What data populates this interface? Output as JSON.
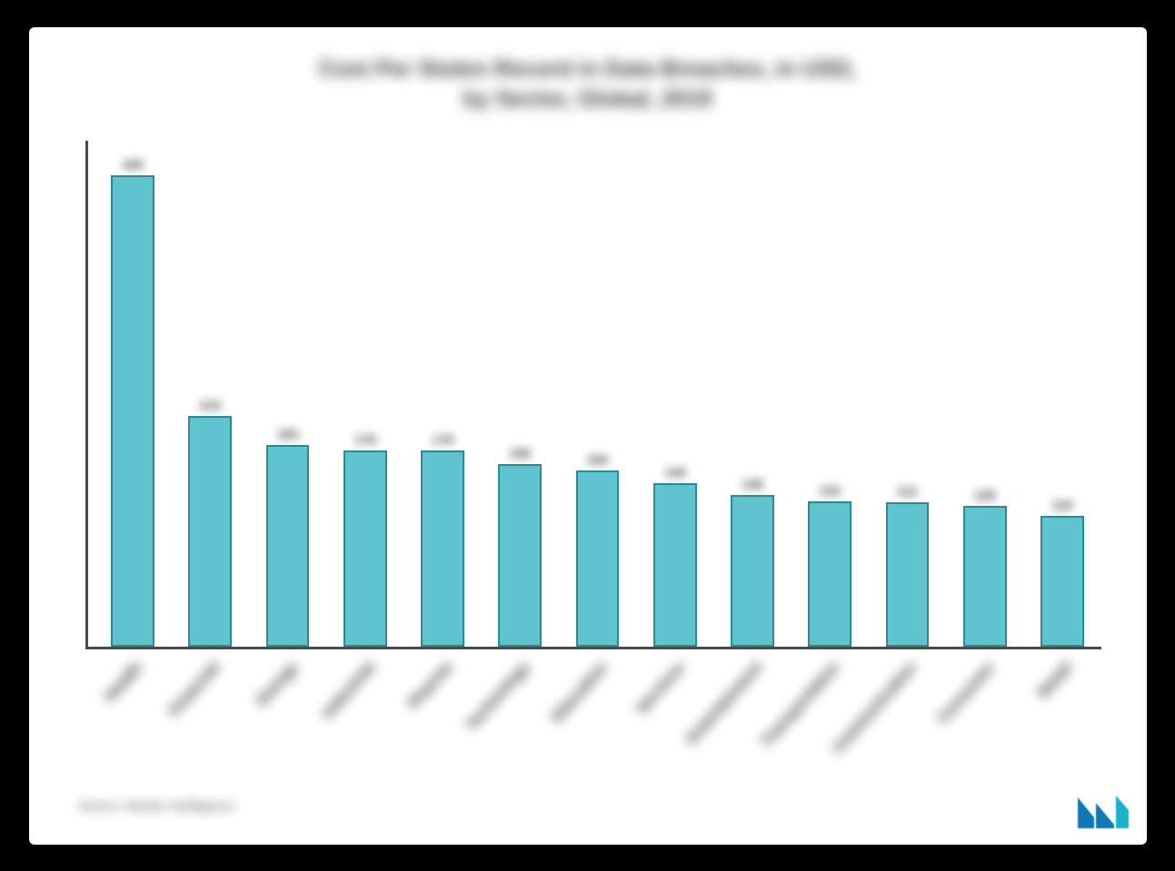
{
  "chart": {
    "type": "bar",
    "title_line1": "Cost Per Stolen Record in Data Breaches, in USD,",
    "title_line2": "by Sector, Global, 2019",
    "title_fontsize": 25,
    "title_color": "#3a3a3a",
    "background_color": "#ffffff",
    "frame_background": "#000000",
    "axis_color": "#4a4a4a",
    "bar_fill": "#5fc4ce",
    "bar_border": "#2b8a99",
    "bar_width_ratio": 0.56,
    "value_fontsize": 14,
    "label_fontsize": 17,
    "label_rotation_deg": -48,
    "ylim": [
      0,
      460
    ],
    "categories": [
      "Health",
      "Financial",
      "Energy",
      "Industrial",
      "Pharma",
      "Technology",
      "Education",
      "Services",
      "Entertainment",
      "Transportation",
      "Communication",
      "Consumer",
      "Retail"
    ],
    "values": [
      429,
      210,
      183,
      178,
      178,
      166,
      160,
      149,
      138,
      132,
      131,
      128,
      119
    ],
    "source_text": "Source: Mordor Intelligence",
    "source_fontsize": 14,
    "logo_colors": {
      "primary": "#1078b3",
      "accent": "#17b1c9"
    }
  }
}
